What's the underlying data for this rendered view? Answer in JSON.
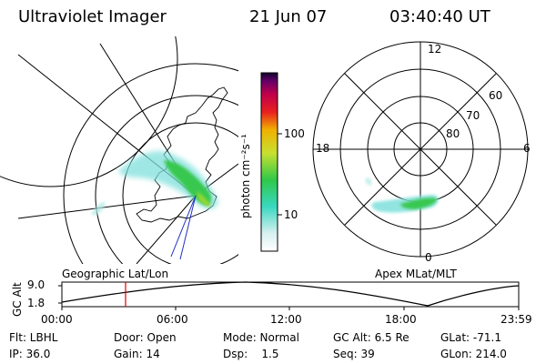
{
  "header": {
    "instrument": "Ultraviolet Imager",
    "date": "21 Jun 07",
    "time": "03:40:40 UT"
  },
  "colorbar": {
    "label": "photon cm⁻²s⁻¹",
    "ticks": [
      "100",
      "10"
    ]
  },
  "polar_plot": {
    "mlt_labels": [
      "12",
      "18",
      "6",
      "0"
    ],
    "lat_labels": [
      "60",
      "70",
      "80"
    ]
  },
  "timeline": {
    "left_caption": "Geographic Lat/Lon",
    "right_caption": "Apex MLat/MLT",
    "axis_title": "GC Alt",
    "y_ticks": [
      "9.0",
      "1.8"
    ],
    "x_ticks": [
      "00:00",
      "06:00",
      "12:00",
      "18:00",
      "23:59"
    ]
  },
  "info": {
    "row1": [
      "Flt: LBHL",
      "Door: Open",
      "Mode: Normal",
      "GC Alt: 6.5 Re",
      "GLat: -71.1"
    ],
    "row2": [
      "IP: 36.0",
      "Gain: 14",
      "Dsp:    1.5",
      "Seq: 39",
      "GLon: 214.0"
    ]
  },
  "colors": {
    "auroral_green": "#37c84f",
    "auroral_cyan": "#7fe0dc",
    "current_time_marker": "#e00000",
    "footpoint_line": "#2030c0"
  }
}
